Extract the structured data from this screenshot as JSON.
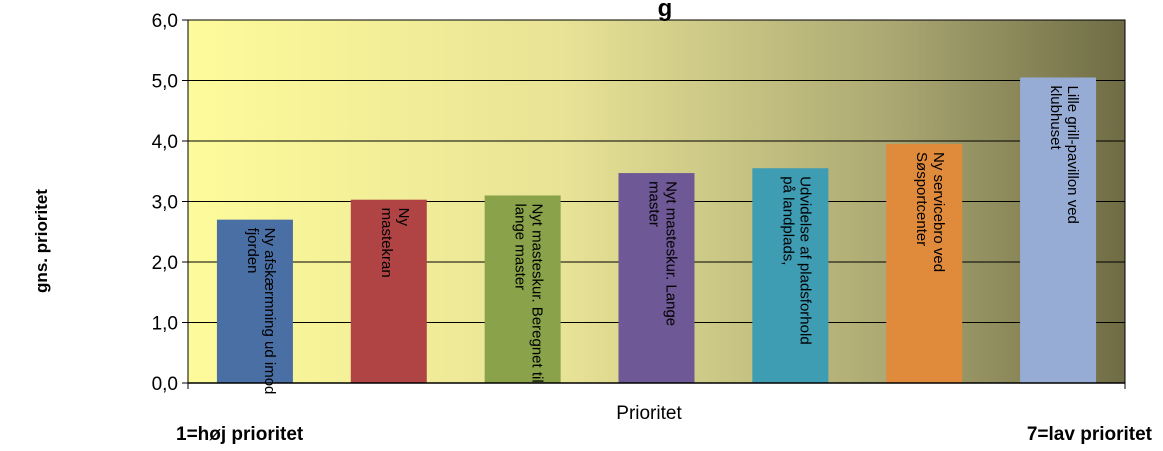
{
  "chart_data": {
    "type": "bar",
    "title": "g",
    "xlabel": "Prioritet",
    "ylabel": "gns. prioritet",
    "x_left_note": "1=høj prioritet",
    "x_right_note": "7=lav prioritet",
    "ylim": [
      0,
      6
    ],
    "yticks": [
      "0,0",
      "1,0",
      "2,0",
      "3,0",
      "4,0",
      "5,0",
      "6,0"
    ],
    "grid": true,
    "categories": [
      "Ny afskærmning ud imod fjorden",
      "Ny mastekran",
      "Nyt masteskur. Beregnet til lange master",
      "Nyt masteskur. Lange master",
      "Udvidelse af pladsforhold på landplads,",
      "Ny servicebro ved Søsportcenter",
      "Lille grill-pavillon ved klubhuset"
    ],
    "label_lines": [
      [
        "Ny afskærmning ud imod",
        "fjorden"
      ],
      [
        "Ny",
        "mastekran"
      ],
      [
        "Nyt masteskur. Beregnet til",
        "lange master"
      ],
      [
        "Nyt masteskur. Lange",
        "master"
      ],
      [
        "Udvidelse af pladsforhold",
        "på landplads,"
      ],
      [
        "Ny servicebro ved",
        "Søsportcenter"
      ],
      [
        "Lille grill-pavillon ved",
        "klubhuset"
      ]
    ],
    "values": [
      2.7,
      3.03,
      3.1,
      3.47,
      3.55,
      3.95,
      5.05
    ],
    "colors": [
      "#4a6fa5",
      "#b04444",
      "#8aa34a",
      "#6f5896",
      "#3e9cb3",
      "#e08a3c",
      "#97acd4"
    ]
  }
}
